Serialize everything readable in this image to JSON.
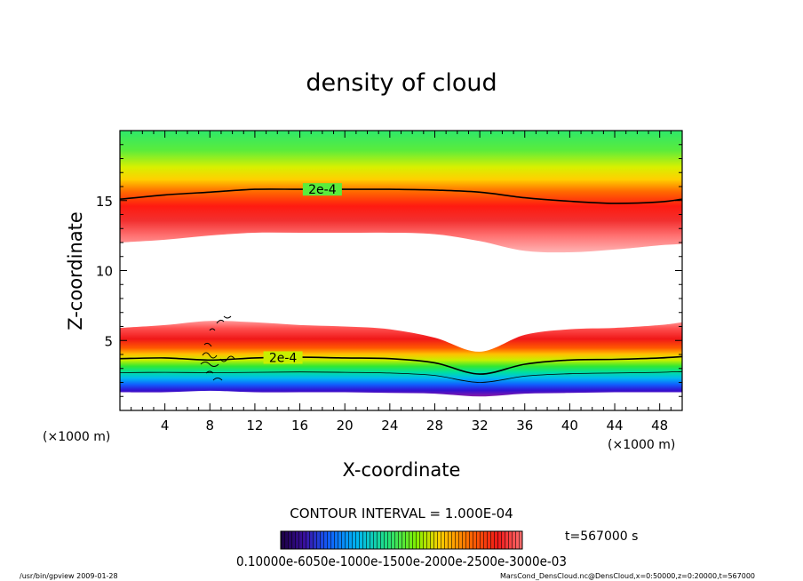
{
  "chart_data": {
    "type": "heatmap",
    "title": "density of cloud",
    "xlabel": "X-coordinate",
    "ylabel": "Z-coordinate",
    "x_unit": "(×1000 m)",
    "y_unit": "(×1000 m)",
    "xlim": [
      0,
      50
    ],
    "ylim": [
      0,
      20
    ],
    "x_ticks": [
      4,
      8,
      12,
      16,
      20,
      24,
      28,
      32,
      36,
      40,
      44,
      48
    ],
    "y_ticks": [
      5,
      10,
      15
    ],
    "contour_labels": [
      "2e-4",
      "2e-4"
    ],
    "upper_layer": {
      "x": [
        0,
        4,
        8,
        12,
        16,
        20,
        24,
        28,
        32,
        36,
        40,
        44,
        48,
        50
      ],
      "contour_2e4_top": [
        15.1,
        15.4,
        15.6,
        15.8,
        15.8,
        15.8,
        15.8,
        15.75,
        15.6,
        15.2,
        14.95,
        14.8,
        14.9,
        15.1
      ],
      "bottom_edge": [
        12.0,
        12.2,
        12.5,
        12.7,
        12.7,
        12.7,
        12.7,
        12.6,
        12.1,
        11.4,
        11.3,
        11.5,
        11.8,
        11.9
      ]
    },
    "lower_layer": {
      "x": [
        0,
        4,
        8,
        12,
        16,
        20,
        24,
        28,
        32,
        36,
        40,
        44,
        48,
        50
      ],
      "top_edge": [
        5.9,
        6.1,
        6.4,
        6.3,
        6.1,
        6.0,
        5.8,
        5.2,
        4.2,
        5.4,
        5.8,
        5.9,
        6.1,
        6.3
      ],
      "contour_2e4": [
        3.7,
        3.75,
        3.6,
        3.75,
        3.8,
        3.75,
        3.7,
        3.4,
        2.6,
        3.3,
        3.6,
        3.65,
        3.75,
        3.85
      ],
      "bottom_edge": [
        1.3,
        1.3,
        1.4,
        1.3,
        1.3,
        1.3,
        1.25,
        1.2,
        1.0,
        1.2,
        1.25,
        1.3,
        1.3,
        1.3
      ]
    },
    "colorbar": {
      "contour_interval": "CONTOUR INTERVAL = 1.000E-04",
      "tick_labels": [
        "0.1000e-6",
        "0.05000e-3",
        "0.1000e-3",
        "0.1500e-3",
        "0.2000e-3",
        "0.2500e-3",
        "0.3000e-3"
      ],
      "tick_text": "0.10000e-6050e-1000e-1500e-2000e-2500e-3000e-03"
    },
    "time_label": "t=567000 s"
  },
  "footer": {
    "left": "/usr/bin/gpview   2009-01-28",
    "right": "MarsCond_DensCloud.nc@DensCloud,x=0:50000,z=0:20000,t=567000"
  },
  "colors": {
    "frame": "#000000",
    "contour": "#000000",
    "background": "#ffffff"
  }
}
